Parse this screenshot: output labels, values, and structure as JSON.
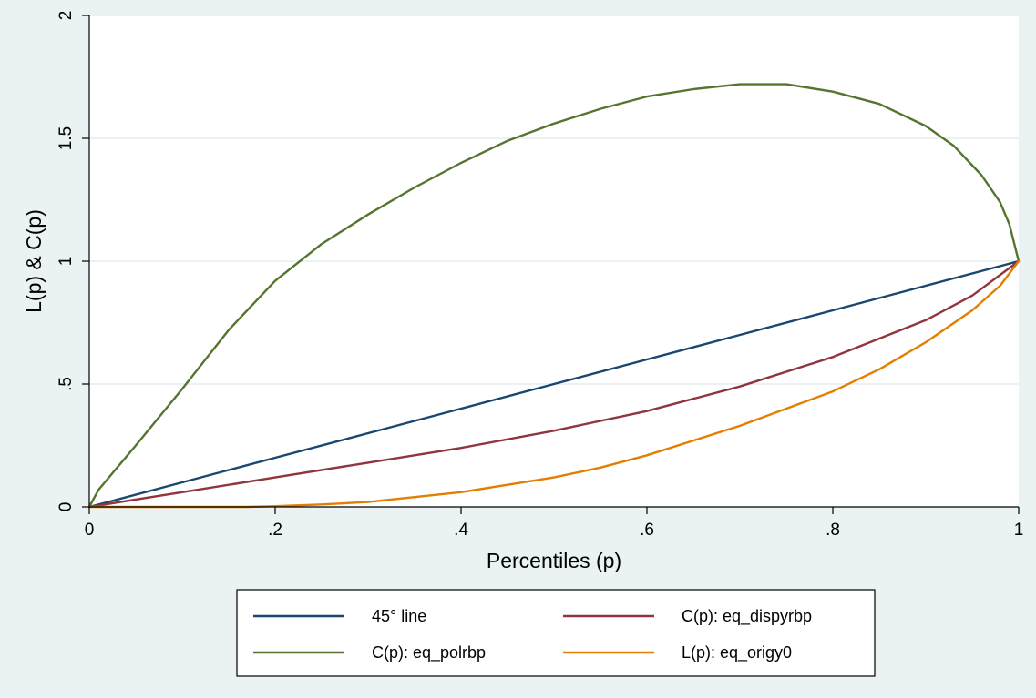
{
  "chart_data": {
    "type": "line",
    "xlabel": "Percentiles (p)",
    "ylabel": "L(p) & C(p)",
    "xlim": [
      0,
      1
    ],
    "ylim": [
      0,
      2
    ],
    "x_ticks": [
      0,
      0.2,
      0.4,
      0.6,
      0.8,
      1
    ],
    "x_tick_labels": [
      "0",
      ".2",
      ".4",
      ".6",
      ".8",
      "1"
    ],
    "y_ticks": [
      0,
      0.5,
      1,
      1.5,
      2
    ],
    "y_tick_labels": [
      "0",
      ".5",
      "1",
      "1.5",
      "2"
    ],
    "grid": true,
    "legend_position": "bottom",
    "series": [
      {
        "name": "45° line",
        "color": "#1a476f",
        "x": [
          0,
          0.1,
          0.2,
          0.3,
          0.4,
          0.5,
          0.6,
          0.7,
          0.8,
          0.9,
          1
        ],
        "y": [
          0,
          0.1,
          0.2,
          0.3,
          0.4,
          0.5,
          0.6,
          0.7,
          0.8,
          0.9,
          1
        ]
      },
      {
        "name": "C(p): eq_dispyrbp",
        "color": "#90353b",
        "x": [
          0,
          0.1,
          0.2,
          0.3,
          0.4,
          0.5,
          0.6,
          0.7,
          0.8,
          0.9,
          0.95,
          1
        ],
        "y": [
          0,
          0.06,
          0.12,
          0.18,
          0.24,
          0.31,
          0.39,
          0.49,
          0.61,
          0.76,
          0.86,
          1
        ]
      },
      {
        "name": "C(p): eq_polrbp",
        "color": "#55752f",
        "x": [
          0,
          0.01,
          0.05,
          0.1,
          0.15,
          0.2,
          0.25,
          0.3,
          0.35,
          0.4,
          0.45,
          0.5,
          0.55,
          0.6,
          0.65,
          0.7,
          0.75,
          0.8,
          0.85,
          0.9,
          0.93,
          0.96,
          0.98,
          0.99,
          1
        ],
        "y": [
          0,
          0.07,
          0.25,
          0.48,
          0.72,
          0.92,
          1.07,
          1.19,
          1.3,
          1.4,
          1.49,
          1.56,
          1.62,
          1.67,
          1.7,
          1.72,
          1.72,
          1.69,
          1.64,
          1.55,
          1.47,
          1.35,
          1.24,
          1.15,
          1
        ]
      },
      {
        "name": "L(p): eq_origy0",
        "color": "#e37e00",
        "x": [
          0,
          0.1,
          0.17,
          0.2,
          0.25,
          0.3,
          0.35,
          0.4,
          0.45,
          0.5,
          0.55,
          0.6,
          0.65,
          0.7,
          0.75,
          0.8,
          0.85,
          0.9,
          0.95,
          0.98,
          1
        ],
        "y": [
          0,
          0,
          0,
          0.003,
          0.01,
          0.02,
          0.04,
          0.06,
          0.09,
          0.12,
          0.16,
          0.21,
          0.27,
          0.33,
          0.4,
          0.47,
          0.56,
          0.67,
          0.8,
          0.9,
          1
        ]
      }
    ]
  }
}
